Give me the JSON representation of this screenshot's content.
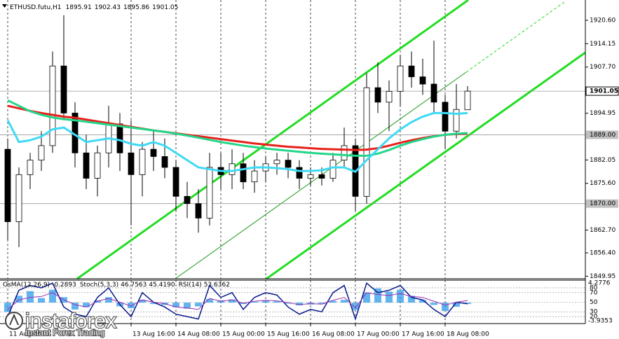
{
  "chart_data": {
    "type": "candlestick",
    "symbol": "ETHUSD.futu,H1",
    "categories": [
      "11 Aug 2023",
      null,
      null,
      null,
      null,
      null,
      null,
      null,
      null,
      null,
      null,
      "13 Aug 16:00",
      null,
      null,
      null,
      "14 Aug 08:00",
      null,
      null,
      null,
      "15 Aug 00:00",
      null,
      null,
      null,
      "15 Aug 16:00",
      null,
      null,
      null,
      "16 Aug 08:00",
      null,
      null,
      null,
      "17 Aug 00:00",
      null,
      null,
      null,
      "17 Aug 16:00",
      null,
      null,
      null,
      "18 Aug 08:00",
      null,
      null
    ],
    "open": [
      1885,
      1865,
      1878,
      1882,
      1886,
      1908,
      1895,
      1884,
      1877,
      1884,
      1892,
      1884,
      1878,
      1885,
      1883,
      1880,
      1872,
      1870,
      1866,
      1880,
      1878,
      1881,
      1876,
      1879,
      1881,
      1882,
      1880,
      1877,
      1878,
      1877,
      1882,
      1886,
      1872,
      1902,
      1898,
      1901,
      1908,
      1905,
      1903,
      1898,
      1890,
      1895.91
    ],
    "high": [
      1888,
      1880,
      1884,
      1890,
      1912,
      1922,
      1898,
      1889,
      1886,
      1897,
      1895,
      1893,
      1887,
      1890,
      1888,
      1882,
      1876,
      1874,
      1884,
      1884,
      1885,
      1884,
      1882,
      1883,
      1884,
      1884,
      1882,
      1880,
      1880,
      1884,
      1891,
      1888,
      1906,
      1909,
      1904,
      1911,
      1912,
      1910,
      1915,
      1900,
      1903,
      1902.43
    ],
    "low": [
      1860,
      1858,
      1874,
      1879,
      1884,
      1893,
      1880,
      1874,
      1872,
      1880,
      1879,
      1864,
      1872,
      1879,
      1877,
      1868,
      1866,
      1862,
      1864,
      1874,
      1874,
      1874,
      1873,
      1876,
      1878,
      1877,
      1874,
      1875,
      1875,
      1876,
      1880,
      1868,
      1870,
      1895,
      1890,
      1897,
      1902,
      1900,
      1895,
      1885,
      1888,
      1895.86
    ],
    "close": [
      1865,
      1878,
      1882,
      1886,
      1908,
      1895,
      1884,
      1877,
      1884,
      1892,
      1884,
      1878,
      1885,
      1883,
      1880,
      1872,
      1870,
      1866,
      1880,
      1878,
      1881,
      1876,
      1879,
      1881,
      1882,
      1880,
      1877,
      1878,
      1877,
      1882,
      1886,
      1872,
      1902,
      1898,
      1901,
      1908,
      1905,
      1903,
      1898,
      1890,
      1896,
      1901.05
    ],
    "moving_averages": [
      {
        "color": "#e8201a",
        "values": [
          1897,
          1896.3,
          1895.6,
          1895,
          1894.5,
          1894,
          1893.7,
          1893.2,
          1892.7,
          1892.2,
          1891.7,
          1891.2,
          1890.7,
          1890.2,
          1889.8,
          1889.4,
          1889,
          1888.6,
          1888.2,
          1887.8,
          1887.4,
          1887,
          1886.6,
          1886.3,
          1886,
          1885.7,
          1885.5,
          1885.3,
          1885.1,
          1885,
          1884.9,
          1884.8,
          1884.9,
          1885.3,
          1886,
          1886.8,
          1887.5,
          1888.1,
          1888.6,
          1889,
          1889.2,
          1889.3
        ]
      },
      {
        "color": "#22d68a",
        "values": [
          1898.5,
          1897,
          1895.5,
          1894.5,
          1893.8,
          1893.3,
          1893,
          1892.6,
          1892.2,
          1891.8,
          1891.4,
          1891,
          1890.6,
          1890.2,
          1889.8,
          1889.3,
          1888.8,
          1888.2,
          1887.6,
          1887,
          1886.5,
          1886,
          1885.6,
          1885.2,
          1884.9,
          1884.6,
          1884.3,
          1884,
          1883.8,
          1883.6,
          1883.4,
          1883.2,
          1883.2,
          1883.8,
          1884.8,
          1886,
          1887,
          1887.8,
          1888.5,
          1889,
          1889.3,
          1889.5
        ]
      },
      {
        "color": "#3fd9f5",
        "values": [
          1893,
          1887,
          1887.5,
          1888.5,
          1890.5,
          1891,
          1889,
          1887,
          1887.5,
          1888,
          1887.5,
          1886.5,
          1886,
          1887,
          1886,
          1884,
          1882,
          1880,
          1879.5,
          1879,
          1879,
          1879.5,
          1880,
          1880,
          1879.8,
          1879.5,
          1879,
          1879,
          1879.2,
          1880,
          1880,
          1878.8,
          1882,
          1885,
          1888,
          1890.5,
          1892.5,
          1894,
          1895,
          1895,
          1894.8,
          1895
        ]
      }
    ],
    "price_levels": [
      {
        "value": 1901.05,
        "label": "1901.05"
      },
      {
        "value": 1889,
        "label": "1889.00"
      },
      {
        "value": 1870,
        "label": "1870.00"
      }
    ],
    "ylim": [
      1849.25,
      1926.21
    ],
    "yticks": [
      {
        "value": 1920.6,
        "label": "1920.60"
      },
      {
        "value": 1914.15,
        "label": "1914.15"
      },
      {
        "value": 1907.7,
        "label": "1907.70"
      },
      {
        "value": 1894.95,
        "label": "1894.95"
      },
      {
        "value": 1882.05,
        "label": "1882.05"
      },
      {
        "value": 1875.6,
        "label": "1875.60"
      },
      {
        "value": 1862.7,
        "label": "1862.70"
      },
      {
        "value": 1856.4,
        "label": "1856.40"
      },
      {
        "value": 1849.95,
        "label": "1849.95"
      }
    ],
    "grid": true,
    "indicator": {
      "osma_name": "OsMA(12,26,9)",
      "stoch_name": "Stoch(5,3,3)",
      "rsi_name": "RSI(14)",
      "osma": [
        -2,
        1.5,
        2.5,
        1,
        2.8,
        1.2,
        -1.5,
        -1,
        0.5,
        1.2,
        -0.8,
        -1.2,
        0.6,
        -0.3,
        -0.5,
        -1,
        -1.3,
        -0.8,
        0.8,
        0.5,
        0.7,
        -0.3,
        0.2,
        0.4,
        0.3,
        -0.2,
        -0.6,
        -0.4,
        -0.3,
        0.4,
        0.6,
        -1.6,
        2.2,
        3.1,
        2.4,
        2.8,
        1.5,
        0.6,
        -0.5,
        -1.8,
        -0.9,
        -0.2893
      ],
      "stoch": [
        20,
        75,
        85,
        80,
        90,
        40,
        25,
        20,
        60,
        80,
        45,
        20,
        70,
        50,
        40,
        25,
        20,
        15,
        85,
        60,
        70,
        35,
        60,
        70,
        65,
        40,
        25,
        35,
        30,
        70,
        85,
        15,
        90,
        70,
        75,
        85,
        60,
        55,
        35,
        20,
        50,
        46.7563
      ],
      "stoch_signal": {
        "value": 45.419,
        "label": "45.4190"
      },
      "rsi": [
        35,
        55,
        60,
        62,
        70,
        55,
        45,
        40,
        52,
        58,
        50,
        42,
        55,
        50,
        47,
        40,
        38,
        35,
        58,
        52,
        55,
        48,
        52,
        54,
        53,
        49,
        45,
        47,
        46,
        54,
        60,
        38,
        70,
        66,
        64,
        68,
        62,
        60,
        52,
        44,
        50,
        53.6362
      ],
      "osma_color": "#2f9be8",
      "stoch_color": "#0a1a8c",
      "rsi_color": "#9a2fb0",
      "osma_ylim": [
        -3.9353,
        4.2776
      ],
      "osc_ylim": [
        0,
        100
      ],
      "osc_ticks": [
        80,
        70,
        50,
        30,
        20
      ]
    },
    "watermark": {
      "brand": "instaforex",
      "tagline": "Instant Forex Trading"
    }
  }
}
